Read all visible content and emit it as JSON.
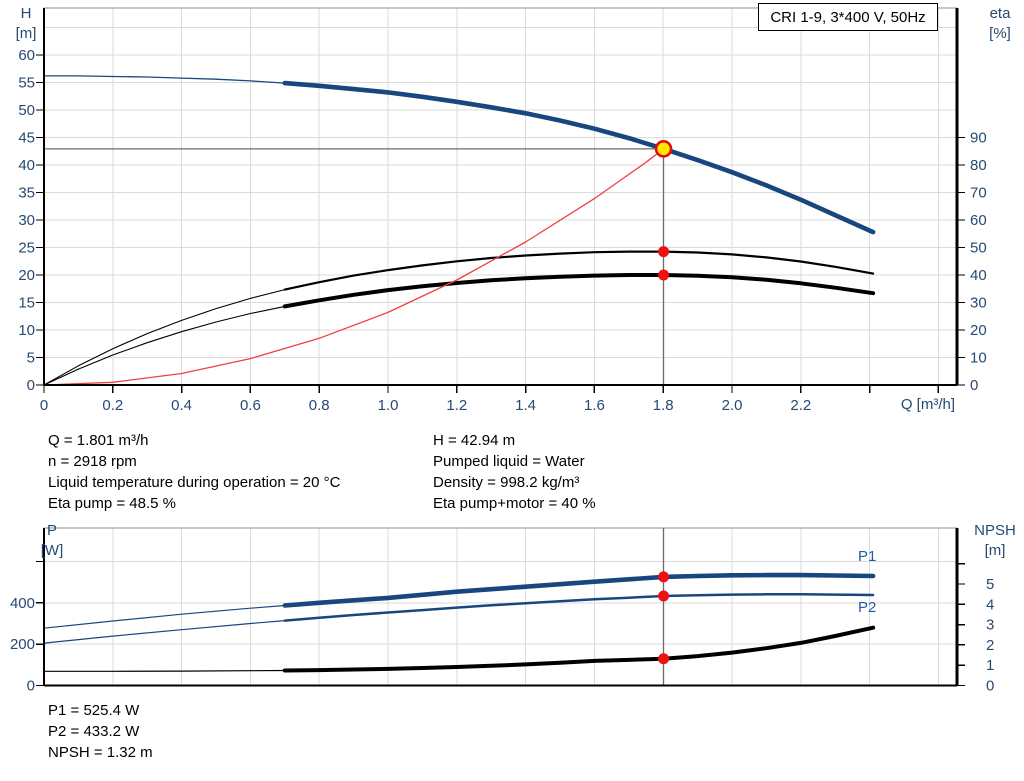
{
  "title_box": {
    "label": "CRI 1-9, 3*400 V, 50Hz"
  },
  "colors": {
    "navy": "#17477E",
    "black": "#000000",
    "red_line": "#EF4040",
    "marker_red": "#EE1111",
    "op_yellow": "#FFE600",
    "op_ring": "#E01010",
    "grid": "#DBDBDB",
    "frame": "#8F8F8F",
    "guide": "#6B6B6B",
    "tick_text": "#254A73",
    "label_blue": "#1E5CA8"
  },
  "info_block": {
    "left": [
      "Q = 1.801 m³/h",
      "n = 2918 rpm",
      "Liquid temperature during operation = 20 °C",
      "Eta pump = 48.5 %"
    ],
    "right": [
      "H = 42.94 m",
      "Pumped liquid = Water",
      "Density = 998.2 kg/m³",
      "Eta pump+motor = 40 %"
    ]
  },
  "results_block": [
    "P1 = 525.4 W",
    "P2 = 433.2 W",
    "NPSH = 1.32 m"
  ],
  "chart_data": [
    {
      "type": "line",
      "name": "qh-eta-chart",
      "title": "CRI 1-9, 3*400 V, 50Hz",
      "x_axis": {
        "label": "Q [m³/h]",
        "min": 0,
        "max": 2.654,
        "ticks": [
          {
            "v": 0,
            "l": "0"
          },
          {
            "v": 0.2,
            "l": "0.2"
          },
          {
            "v": 0.4,
            "l": "0.4"
          },
          {
            "v": 0.6,
            "l": "0.6"
          },
          {
            "v": 0.8,
            "l": "0.8"
          },
          {
            "v": 1.0,
            "l": "1.0"
          },
          {
            "v": 1.2,
            "l": "1.2"
          },
          {
            "v": 1.4,
            "l": "1.4"
          },
          {
            "v": 1.6,
            "l": "1.6"
          },
          {
            "v": 1.8,
            "l": "1.8"
          },
          {
            "v": 2.0,
            "l": "2.0"
          },
          {
            "v": 2.2,
            "l": "2.2"
          },
          {
            "v": 2.4,
            "l": ""
          },
          {
            "v": 2.6,
            "l": ""
          }
        ]
      },
      "y_left": {
        "sym": "H",
        "unit": "[m]",
        "min": 0,
        "max": 68.55,
        "ticks": [
          {
            "v": 0,
            "l": "0"
          },
          {
            "v": 5,
            "l": "5"
          },
          {
            "v": 10,
            "l": "10"
          },
          {
            "v": 15,
            "l": "15"
          },
          {
            "v": 20,
            "l": "20"
          },
          {
            "v": 25,
            "l": "25"
          },
          {
            "v": 30,
            "l": "30"
          },
          {
            "v": 35,
            "l": "35"
          },
          {
            "v": 40,
            "l": "40"
          },
          {
            "v": 45,
            "l": "45"
          },
          {
            "v": 50,
            "l": "50"
          },
          {
            "v": 55,
            "l": "55"
          },
          {
            "v": 60,
            "l": "60"
          }
        ]
      },
      "y_right": {
        "sym": "eta",
        "unit": "[%]",
        "min": 0,
        "max": 137.1,
        "ticks": [
          {
            "v": 0,
            "l": "0"
          },
          {
            "v": 10,
            "l": "10"
          },
          {
            "v": 20,
            "l": "20"
          },
          {
            "v": 30,
            "l": "30"
          },
          {
            "v": 40,
            "l": "40"
          },
          {
            "v": 50,
            "l": "50"
          },
          {
            "v": 60,
            "l": "60"
          },
          {
            "v": 70,
            "l": "70"
          },
          {
            "v": 80,
            "l": "80"
          },
          {
            "v": 90,
            "l": "90"
          }
        ]
      },
      "grid": {
        "v": [
          0.2,
          0.4,
          0.6,
          0.8,
          1.0,
          1.2,
          1.4,
          1.6,
          1.8,
          2.0,
          2.2,
          2.4,
          2.6
        ],
        "h": [
          5,
          10,
          15,
          20,
          25,
          30,
          35,
          40,
          45,
          50,
          55,
          60,
          65
        ]
      },
      "series": [
        {
          "name": "eta-pump-motor-curve",
          "legend": "Eta pump+motor",
          "axis": "right",
          "color": "black",
          "thin": 1.1,
          "thick": 4.0,
          "split": 0.7,
          "points": [
            [
              0,
              0
            ],
            [
              0.1,
              5.8
            ],
            [
              0.2,
              10.9
            ],
            [
              0.3,
              15.4
            ],
            [
              0.4,
              19.4
            ],
            [
              0.5,
              22.9
            ],
            [
              0.6,
              26.0
            ],
            [
              0.7,
              28.6
            ],
            [
              0.8,
              30.8
            ],
            [
              0.9,
              32.8
            ],
            [
              1.0,
              34.5
            ],
            [
              1.1,
              35.9
            ],
            [
              1.2,
              37.1
            ],
            [
              1.3,
              38.1
            ],
            [
              1.4,
              38.8
            ],
            [
              1.5,
              39.4
            ],
            [
              1.6,
              39.8
            ],
            [
              1.7,
              40.0
            ],
            [
              1.801,
              40.0
            ],
            [
              1.9,
              39.7
            ],
            [
              2.0,
              39.2
            ],
            [
              2.1,
              38.3
            ],
            [
              2.2,
              37.0
            ],
            [
              2.3,
              35.4
            ],
            [
              2.41,
              33.4
            ]
          ]
        },
        {
          "name": "eta-pump-curve",
          "legend": "Eta pump",
          "axis": "right",
          "color": "black",
          "thin": 1.1,
          "thick": 2.2,
          "split": 0.7,
          "points": [
            [
              0,
              0
            ],
            [
              0.1,
              7.0
            ],
            [
              0.2,
              13.2
            ],
            [
              0.3,
              18.7
            ],
            [
              0.4,
              23.5
            ],
            [
              0.5,
              27.8
            ],
            [
              0.6,
              31.5
            ],
            [
              0.7,
              34.7
            ],
            [
              0.8,
              37.4
            ],
            [
              0.9,
              39.8
            ],
            [
              1.0,
              41.8
            ],
            [
              1.1,
              43.5
            ],
            [
              1.2,
              45.0
            ],
            [
              1.3,
              46.2
            ],
            [
              1.4,
              47.1
            ],
            [
              1.5,
              47.8
            ],
            [
              1.6,
              48.3
            ],
            [
              1.7,
              48.5
            ],
            [
              1.801,
              48.5
            ],
            [
              1.9,
              48.2
            ],
            [
              2.0,
              47.5
            ],
            [
              2.1,
              46.4
            ],
            [
              2.2,
              44.9
            ],
            [
              2.3,
              43.0
            ],
            [
              2.41,
              40.5
            ]
          ]
        },
        {
          "name": "system-curve",
          "legend": "System curve",
          "axis": "left",
          "color": "red_line",
          "thin": 1.3,
          "thick": 1.3,
          "split": 2.6,
          "points": [
            [
              0,
              0
            ],
            [
              0.2,
              0.5
            ],
            [
              0.4,
              2.1
            ],
            [
              0.6,
              4.8
            ],
            [
              0.8,
              8.5
            ],
            [
              1.0,
              13.2
            ],
            [
              1.2,
              19.1
            ],
            [
              1.4,
              26.0
            ],
            [
              1.6,
              33.9
            ],
            [
              1.7,
              38.3
            ],
            [
              1.75,
              40.5
            ],
            [
              1.801,
              42.94
            ]
          ]
        },
        {
          "name": "head-curve",
          "legend": "H",
          "axis": "left",
          "color": "navy",
          "thin": 1.3,
          "thick": 4.6,
          "split": 0.7,
          "points": [
            [
              0,
              56.2
            ],
            [
              0.1,
              56.2
            ],
            [
              0.2,
              56.1
            ],
            [
              0.3,
              56.0
            ],
            [
              0.4,
              55.8
            ],
            [
              0.5,
              55.6
            ],
            [
              0.6,
              55.3
            ],
            [
              0.7,
              54.9
            ],
            [
              0.8,
              54.4
            ],
            [
              0.9,
              53.8
            ],
            [
              1.0,
              53.2
            ],
            [
              1.1,
              52.4
            ],
            [
              1.2,
              51.5
            ],
            [
              1.3,
              50.5
            ],
            [
              1.4,
              49.4
            ],
            [
              1.5,
              48.1
            ],
            [
              1.6,
              46.6
            ],
            [
              1.7,
              44.9
            ],
            [
              1.801,
              42.94
            ],
            [
              1.9,
              40.9
            ],
            [
              2.0,
              38.7
            ],
            [
              2.1,
              36.3
            ],
            [
              2.2,
              33.7
            ],
            [
              2.3,
              30.9
            ],
            [
              2.41,
              27.8
            ]
          ]
        }
      ],
      "guides": [
        {
          "dir": "h",
          "at": 42.94,
          "from": 0,
          "to": 1.801
        },
        {
          "dir": "v",
          "at": 1.801,
          "from": 42.94,
          "to": 0
        }
      ],
      "markers": [
        {
          "name": "eta-pump-point",
          "q": 1.801,
          "v": 48.5,
          "axis": "right",
          "kind": "dot"
        },
        {
          "name": "eta-pump-motor-point",
          "q": 1.801,
          "v": 40,
          "axis": "right",
          "kind": "dot"
        },
        {
          "name": "operating-point",
          "q": 1.801,
          "v": 42.94,
          "axis": "left",
          "kind": "op"
        }
      ],
      "operating_point": {
        "Q_m3h": 1.801,
        "H_m": 42.94,
        "eta_pump_pct": 48.5,
        "eta_pump_motor_pct": 40
      },
      "right_label_offset": 13
    },
    {
      "type": "line",
      "name": "power-npsh-chart",
      "x_axis": {
        "label": "",
        "min": 0,
        "max": 2.654,
        "ticks": []
      },
      "y_left": {
        "sym": "P",
        "unit": "[W]",
        "min": 0,
        "max": 762,
        "ticks": [
          {
            "v": 0,
            "l": "0"
          },
          {
            "v": 200,
            "l": "200"
          },
          {
            "v": 400,
            "l": "400"
          },
          {
            "v": 600,
            "l": ""
          }
        ]
      },
      "y_right": {
        "sym": "NPSH",
        "unit": "[m]",
        "min": 0,
        "max": 7.76,
        "ticks": [
          {
            "v": 0,
            "l": "0"
          },
          {
            "v": 1,
            "l": "1"
          },
          {
            "v": 2,
            "l": "2"
          },
          {
            "v": 3,
            "l": "3"
          },
          {
            "v": 4,
            "l": "4"
          },
          {
            "v": 5,
            "l": "5"
          },
          {
            "v": 6,
            "l": ""
          }
        ]
      },
      "grid": {
        "v": [
          0.2,
          0.4,
          0.6,
          0.8,
          1.0,
          1.2,
          1.4,
          1.6,
          1.8,
          2.0,
          2.2,
          2.4,
          2.6
        ],
        "h": [
          200,
          400,
          600
        ]
      },
      "series": [
        {
          "name": "npsh-curve",
          "legend": "NPSH",
          "axis": "right",
          "color": "black",
          "thin": 1.2,
          "thick": 4.0,
          "split": 0.7,
          "points": [
            [
              0,
              0.7
            ],
            [
              0.2,
              0.7
            ],
            [
              0.4,
              0.71
            ],
            [
              0.6,
              0.73
            ],
            [
              0.7,
              0.74
            ],
            [
              0.8,
              0.76
            ],
            [
              0.9,
              0.79
            ],
            [
              1.0,
              0.82
            ],
            [
              1.1,
              0.86
            ],
            [
              1.2,
              0.91
            ],
            [
              1.3,
              0.97
            ],
            [
              1.4,
              1.04
            ],
            [
              1.5,
              1.12
            ],
            [
              1.6,
              1.21
            ],
            [
              1.7,
              1.26
            ],
            [
              1.801,
              1.32
            ],
            [
              1.9,
              1.45
            ],
            [
              2.0,
              1.62
            ],
            [
              2.1,
              1.84
            ],
            [
              2.2,
              2.1
            ],
            [
              2.3,
              2.44
            ],
            [
              2.41,
              2.85
            ]
          ]
        },
        {
          "name": "p2-curve",
          "legend": "P2",
          "axis": "left",
          "color": "navy",
          "thin": 1.2,
          "thick": 2.5,
          "split": 0.7,
          "points": [
            [
              0,
              205
            ],
            [
              0.2,
              239
            ],
            [
              0.4,
              270
            ],
            [
              0.6,
              300
            ],
            [
              0.7,
              314
            ],
            [
              0.8,
              328
            ],
            [
              0.9,
              341
            ],
            [
              1.0,
              353
            ],
            [
              1.1,
              365
            ],
            [
              1.2,
              377
            ],
            [
              1.3,
              388
            ],
            [
              1.4,
              398
            ],
            [
              1.5,
              408
            ],
            [
              1.6,
              417
            ],
            [
              1.7,
              425
            ],
            [
              1.801,
              433.2
            ],
            [
              1.9,
              437
            ],
            [
              2.0,
              440
            ],
            [
              2.1,
              441
            ],
            [
              2.2,
              441
            ],
            [
              2.3,
              440
            ],
            [
              2.41,
              438
            ]
          ]
        },
        {
          "name": "p1-curve",
          "legend": "P1",
          "axis": "left",
          "color": "navy",
          "thin": 1.2,
          "thick": 4.6,
          "split": 0.7,
          "points": [
            [
              0,
              277
            ],
            [
              0.2,
              312
            ],
            [
              0.4,
              345
            ],
            [
              0.6,
              374
            ],
            [
              0.7,
              387
            ],
            [
              0.8,
              400
            ],
            [
              0.9,
              412
            ],
            [
              1.0,
              424
            ],
            [
              1.1,
              439
            ],
            [
              1.2,
              454
            ],
            [
              1.3,
              466
            ],
            [
              1.4,
              478
            ],
            [
              1.5,
              490
            ],
            [
              1.6,
              502
            ],
            [
              1.7,
              514
            ],
            [
              1.801,
              525.4
            ],
            [
              1.9,
              530
            ],
            [
              2.0,
              533
            ],
            [
              2.1,
              534
            ],
            [
              2.2,
              534
            ],
            [
              2.3,
              532
            ],
            [
              2.41,
              530
            ]
          ]
        }
      ],
      "guides": [
        {
          "dir": "v",
          "at": 1.801,
          "from": 762,
          "to": 0
        }
      ],
      "markers": [
        {
          "name": "p1-point",
          "q": 1.801,
          "v": 525.4,
          "axis": "left",
          "kind": "dot"
        },
        {
          "name": "p2-point",
          "q": 1.801,
          "v": 433.2,
          "axis": "left",
          "kind": "dot"
        },
        {
          "name": "npsh-point",
          "q": 1.801,
          "v": 1.32,
          "axis": "right",
          "kind": "dot"
        }
      ],
      "duty": {
        "P1_W": 525.4,
        "P2_W": 433.2,
        "NPSH_m": 1.32
      },
      "labels": {
        "p1": "P1",
        "p2": "P2"
      },
      "right_label_offset": 29
    }
  ]
}
